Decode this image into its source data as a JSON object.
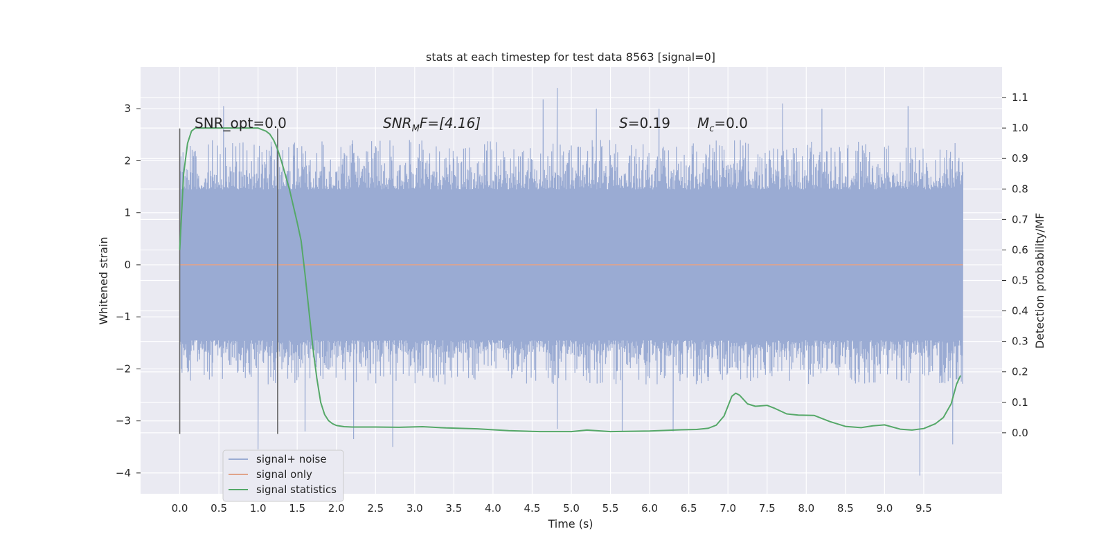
{
  "chart_data": {
    "type": "line",
    "title": "stats at each timestep for test data 8563 [signal=0]",
    "xlabel": "Time (s)",
    "ylabel": "Whitened strain",
    "ylabel_right": "Detection probability/MF",
    "xlim": [
      -0.5,
      10.5
    ],
    "ylim": [
      -4.4,
      3.8
    ],
    "ylim_right": [
      -0.2,
      1.2
    ],
    "x_ticks": [
      "0.0",
      "0.5",
      "1.0",
      "1.5",
      "2.0",
      "2.5",
      "3.0",
      "3.5",
      "4.0",
      "4.5",
      "5.0",
      "5.5",
      "6.0",
      "6.5",
      "7.0",
      "7.5",
      "8.0",
      "8.5",
      "9.0",
      "9.5"
    ],
    "y_ticks": [
      "−4",
      "−3",
      "−2",
      "−1",
      "0",
      "1",
      "2",
      "3"
    ],
    "y_ticks_right": [
      "0.0",
      "0.1",
      "0.2",
      "0.3",
      "0.4",
      "0.5",
      "0.6",
      "0.7",
      "0.8",
      "0.9",
      "1.0",
      "1.1"
    ],
    "grid": true,
    "legend_position": "bottom-left",
    "legend": [
      "signal+ noise",
      "signal only",
      "signal statistics"
    ],
    "annotations": {
      "snr_opt": "SNR_opt=0.0",
      "snr_mf_base": "SNR",
      "snr_mf_sub": "M",
      "snr_mf_rest": "F=[4.16]",
      "s_label": "S",
      "s_value": "=0.19",
      "mc_label": "M",
      "mc_sub": "c",
      "mc_value": "=0.0"
    },
    "vertical_lines_x": [
      0.0,
      1.25
    ],
    "vertical_lines_y_range": [
      -3.25,
      2.62
    ],
    "series": [
      {
        "name": "signal+ noise",
        "color": "#9aabd3",
        "time_range": [
          0.0,
          10.0
        ],
        "envelope": {
          "core_high": 1.45,
          "core_low": -1.45,
          "typical_max": 2.4,
          "typical_min": -2.3,
          "max": 3.4,
          "min": -4.05
        },
        "peaks": [
          [
            4.82,
            3.4
          ],
          [
            4.64,
            3.18
          ],
          [
            0.56,
            3.05
          ],
          [
            7.7,
            3.1
          ],
          [
            6.12,
            3.0
          ],
          [
            9.3,
            3.05
          ],
          [
            5.32,
            3.0
          ],
          [
            8.2,
            3.0
          ]
        ],
        "troughs": [
          [
            9.45,
            -4.05
          ],
          [
            1.0,
            -3.55
          ],
          [
            2.72,
            -3.5
          ],
          [
            9.87,
            -3.45
          ],
          [
            5.65,
            -3.2
          ],
          [
            1.6,
            -3.2
          ],
          [
            6.3,
            -3.2
          ],
          [
            4.82,
            -3.15
          ],
          [
            2.22,
            -3.35
          ]
        ]
      },
      {
        "name": "signal only",
        "color": "#e0a38a",
        "x": [
          0.0,
          10.0
        ],
        "y": [
          0.0,
          0.0
        ]
      },
      {
        "name": "signal statistics",
        "color": "#55a868",
        "axis": "right",
        "x": [
          0.0,
          0.05,
          0.1,
          0.15,
          0.2,
          0.3,
          0.4,
          0.5,
          0.6,
          0.7,
          0.8,
          0.9,
          1.0,
          1.1,
          1.15,
          1.2,
          1.25,
          1.3,
          1.4,
          1.5,
          1.55,
          1.6,
          1.65,
          1.7,
          1.75,
          1.8,
          1.85,
          1.9,
          1.95,
          2.0,
          2.1,
          2.2,
          2.5,
          2.8,
          3.1,
          3.4,
          3.8,
          4.2,
          4.6,
          5.0,
          5.2,
          5.5,
          6.0,
          6.4,
          6.6,
          6.75,
          6.85,
          6.95,
          7.05,
          7.1,
          7.15,
          7.25,
          7.35,
          7.5,
          7.6,
          7.75,
          7.9,
          8.1,
          8.3,
          8.5,
          8.7,
          8.85,
          9.0,
          9.2,
          9.35,
          9.5,
          9.65,
          9.75,
          9.85,
          9.92,
          9.97
        ],
        "y": [
          0.6,
          0.85,
          0.95,
          0.99,
          1.0,
          1.0,
          1.0,
          1.0,
          1.0,
          1.0,
          1.0,
          1.0,
          1.0,
          0.99,
          0.98,
          0.96,
          0.93,
          0.89,
          0.8,
          0.69,
          0.63,
          0.52,
          0.4,
          0.28,
          0.18,
          0.1,
          0.06,
          0.04,
          0.03,
          0.024,
          0.02,
          0.019,
          0.019,
          0.018,
          0.02,
          0.016,
          0.013,
          0.007,
          0.004,
          0.004,
          0.009,
          0.004,
          0.006,
          0.01,
          0.011,
          0.015,
          0.025,
          0.055,
          0.12,
          0.13,
          0.123,
          0.095,
          0.087,
          0.09,
          0.08,
          0.062,
          0.058,
          0.057,
          0.037,
          0.021,
          0.017,
          0.023,
          0.026,
          0.012,
          0.009,
          0.014,
          0.03,
          0.05,
          0.095,
          0.16,
          0.188
        ]
      }
    ]
  }
}
